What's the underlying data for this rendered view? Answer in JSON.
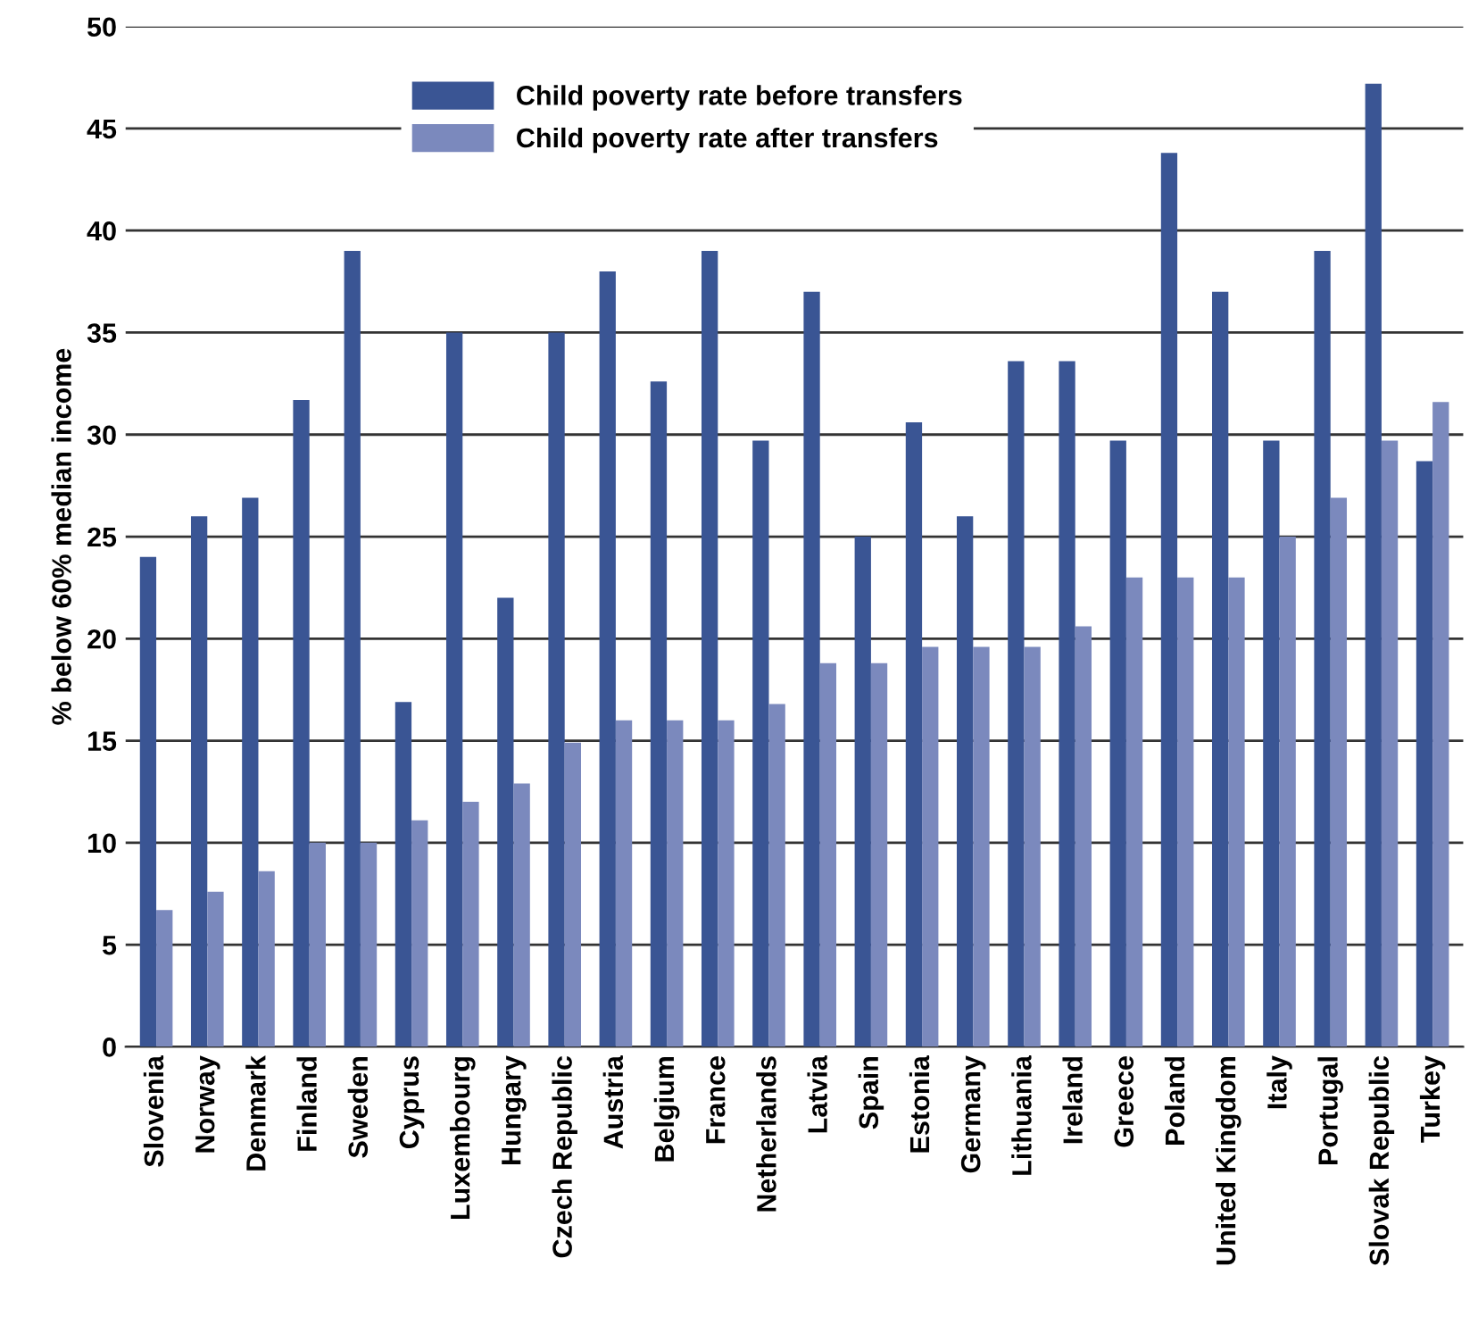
{
  "chart_data": {
    "type": "bar",
    "ylabel": "% below 60% median income",
    "categories": [
      "Slovenia",
      "Norway",
      "Denmark",
      "Finland",
      "Sweden",
      "Cyprus",
      "Luxembourg",
      "Hungary",
      "Czech Republic",
      "Austria",
      "Belgium",
      "France",
      "Netherlands",
      "Latvia",
      "Spain",
      "Estonia",
      "Germany",
      "Lithuania",
      "Ireland",
      "Greece",
      "Poland",
      "United Kingdom",
      "Italy",
      "Portugal",
      "Slovak Republic",
      "Turkey"
    ],
    "series": [
      {
        "name": "Child poverty rate before transfers",
        "color": "#3a5594",
        "values": [
          24,
          26,
          26.9,
          31.7,
          39,
          16.9,
          35,
          22,
          35,
          38,
          32.6,
          39,
          29.7,
          37,
          25,
          30.6,
          26,
          33.6,
          33.6,
          29.7,
          43.8,
          37,
          29.7,
          39,
          47.2,
          28.7
        ]
      },
      {
        "name": "Child poverty rate after transfers",
        "color": "#7b89bd",
        "values": [
          6.7,
          7.6,
          8.6,
          10,
          10,
          11.1,
          12,
          12.9,
          14.9,
          16,
          16,
          16,
          16.8,
          18.8,
          18.8,
          19.6,
          19.6,
          19.6,
          20.6,
          23,
          23,
          23,
          25,
          26.9,
          29.7,
          31.6
        ]
      }
    ],
    "ylim": [
      0,
      50
    ],
    "yticks": [
      0,
      5,
      10,
      15,
      20,
      25,
      30,
      35,
      40,
      45,
      50
    ],
    "grid": "y",
    "legend": "top"
  }
}
